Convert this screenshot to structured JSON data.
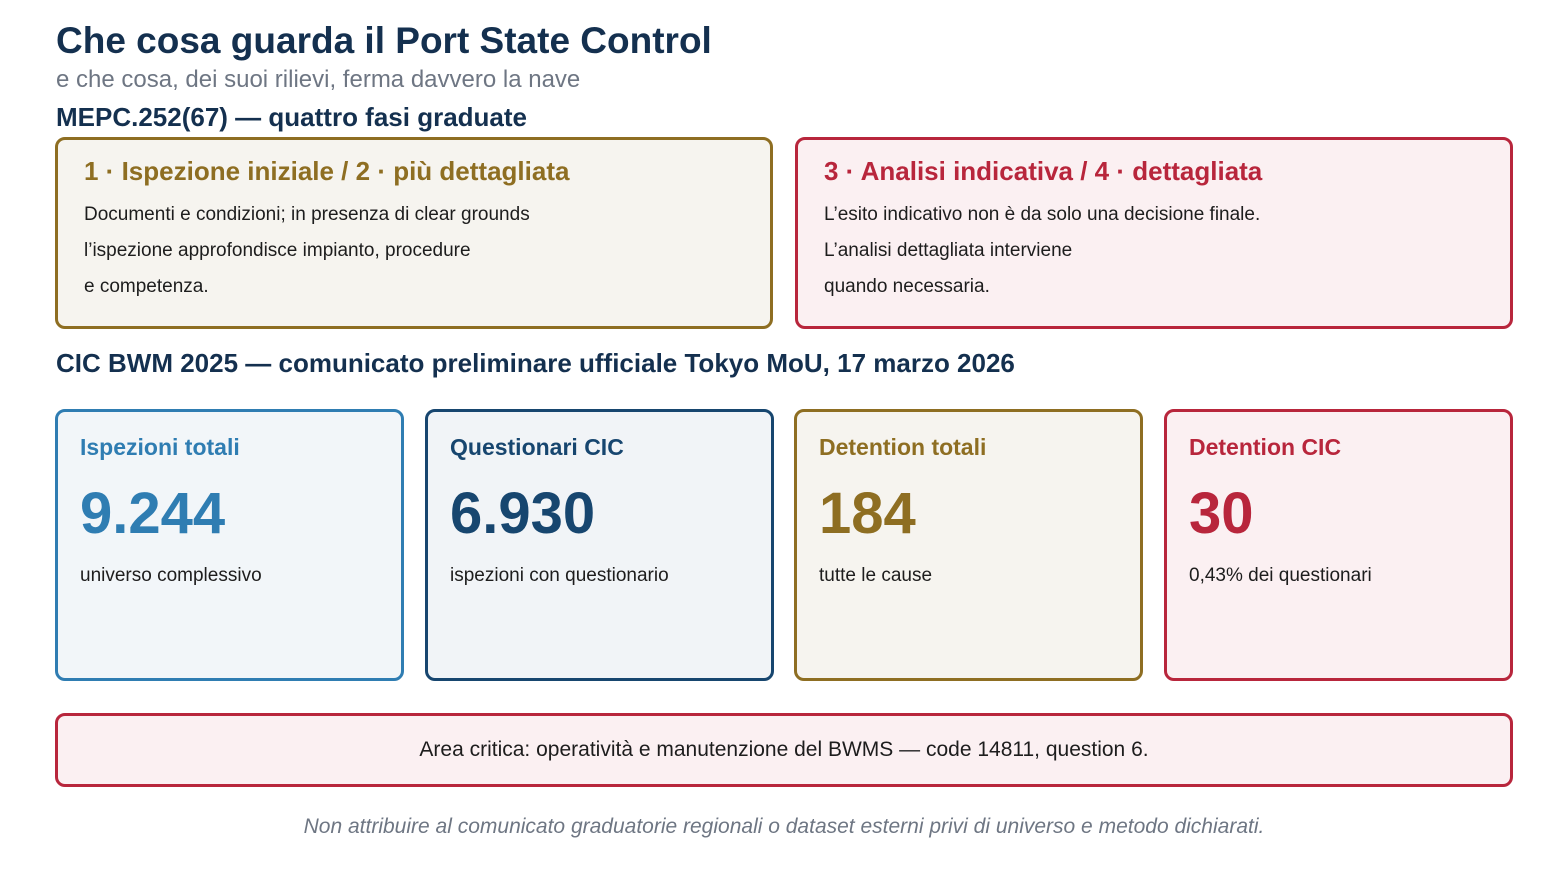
{
  "header": {
    "title": "Che cosa guarda il Port State Control",
    "subtitle": "e che cosa, dei suoi rilievi, ferma davvero la nave"
  },
  "sections": {
    "phases_title": "MEPC.252(67) — quattro fasi graduate",
    "stats_title": "CIC BWM 2025 — comunicato preliminare ufficiale Tokyo MoU, 17 marzo 2026"
  },
  "phases": [
    {
      "heading": "1 · Ispezione iniziale / 2 · più dettagliata",
      "lines": [
        "Documenti e condizioni; in presenza di clear grounds",
        "l’ispezione approfondisce impianto, procedure",
        "e competenza."
      ],
      "color": "#8e6e22"
    },
    {
      "heading": "3 · Analisi indicativa / 4 · dettagliata",
      "lines": [
        "L’esito indicativo non è da solo una decisione finale.",
        "L’analisi dettagliata interviene",
        "quando necessaria."
      ],
      "color": "#b8263c"
    }
  ],
  "stats": [
    {
      "label": "Ispezioni totali",
      "value": "9.244",
      "note": "universo complessivo",
      "color": "#2f7db2"
    },
    {
      "label": "Questionari CIC",
      "value": "6.930",
      "note": "ispezioni con questionario",
      "color": "#17466f"
    },
    {
      "label": "Detention totali",
      "value": "184",
      "note": "tutte le cause",
      "color": "#8e6e22"
    },
    {
      "label": "Detention CIC",
      "value": "30",
      "note": "0,43% dei questionari",
      "color": "#b8263c"
    }
  ],
  "critical_area": "Area critica: operatività e manutenzione del BWMS — code 14811, question 6.",
  "footer_note": "Non attribuire al comunicato graduatorie regionali o dataset esterni privi di universo e metodo dichiarati."
}
